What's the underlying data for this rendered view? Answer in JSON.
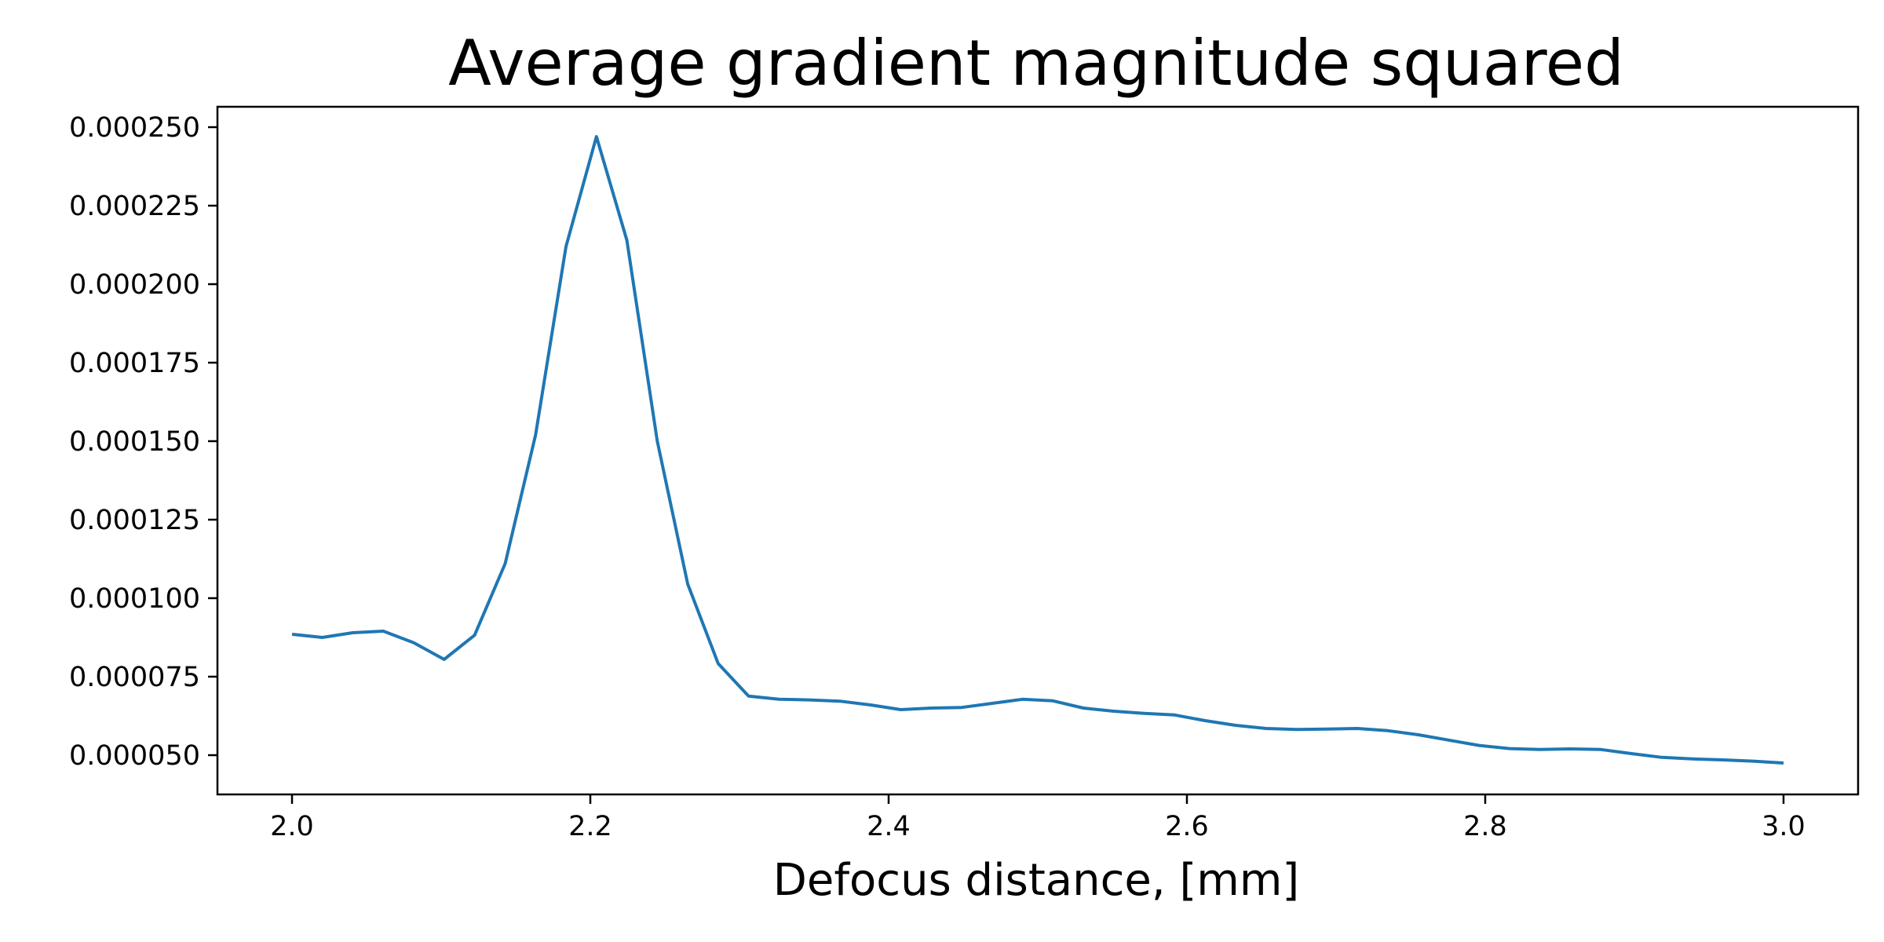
{
  "chart_data": {
    "type": "line",
    "title": "Average gradient magnitude squared",
    "xlabel": "Defocus distance, [mm]",
    "ylabel": "",
    "xlim": [
      1.95,
      3.05
    ],
    "ylim": [
      3.75e-05,
      0.0002565
    ],
    "x_ticks": [
      2.0,
      2.2,
      2.4,
      2.6,
      2.8,
      3.0
    ],
    "x_tick_labels": [
      "2.0",
      "2.2",
      "2.4",
      "2.6",
      "2.8",
      "3.0"
    ],
    "y_ticks": [
      5e-05,
      7.5e-05,
      0.0001,
      0.000125,
      0.00015,
      0.000175,
      0.0002,
      0.000225,
      0.00025
    ],
    "y_tick_labels": [
      "0.000050",
      "0.000075",
      "0.000100",
      "0.000125",
      "0.000150",
      "0.000175",
      "0.000200",
      "0.000225",
      "0.000250"
    ],
    "grid": false,
    "series": [
      {
        "color": "#1f77b4",
        "x": [
          2.0,
          2.0204,
          2.0408,
          2.0612,
          2.0816,
          2.102,
          2.1224,
          2.1429,
          2.1633,
          2.1837,
          2.2041,
          2.2245,
          2.2449,
          2.2653,
          2.2857,
          2.3061,
          2.3265,
          2.3469,
          2.3673,
          2.3878,
          2.4082,
          2.4286,
          2.449,
          2.4694,
          2.4898,
          2.5102,
          2.5306,
          2.551,
          2.5714,
          2.5918,
          2.6122,
          2.6327,
          2.6531,
          2.6735,
          2.6939,
          2.7143,
          2.7347,
          2.7551,
          2.7755,
          2.7959,
          2.8163,
          2.8367,
          2.8571,
          2.8776,
          2.898,
          2.9184,
          2.9388,
          2.9592,
          2.9796,
          3.0
        ],
        "y": [
          8.85e-05,
          8.75e-05,
          8.9e-05,
          8.95e-05,
          8.58e-05,
          8.05e-05,
          8.82e-05,
          0.000111,
          0.000152,
          0.000212,
          0.000247,
          0.000214,
          0.00015,
          0.0001045,
          7.92e-05,
          6.88e-05,
          6.78e-05,
          6.76e-05,
          6.72e-05,
          6.6e-05,
          6.45e-05,
          6.5e-05,
          6.52e-05,
          6.65e-05,
          6.78e-05,
          6.73e-05,
          6.5e-05,
          6.4e-05,
          6.33e-05,
          6.28e-05,
          6.1e-05,
          5.95e-05,
          5.85e-05,
          5.82e-05,
          5.83e-05,
          5.85e-05,
          5.78e-05,
          5.65e-05,
          5.48e-05,
          5.31e-05,
          5.21e-05,
          5.18e-05,
          5.2e-05,
          5.18e-05,
          5.05e-05,
          4.93e-05,
          4.88e-05,
          4.85e-05,
          4.81e-05,
          4.75e-05
        ]
      }
    ]
  }
}
